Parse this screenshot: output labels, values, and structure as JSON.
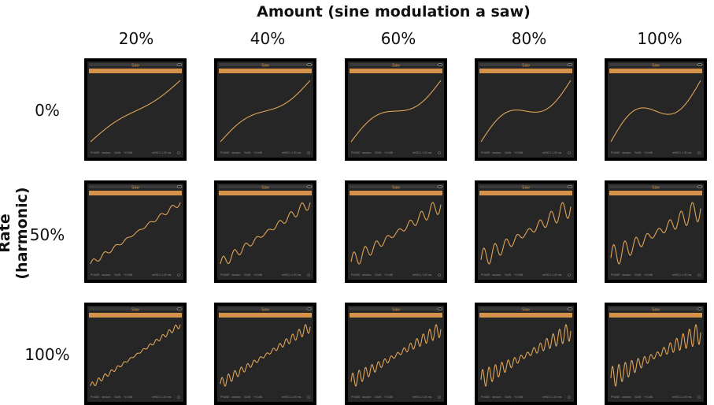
{
  "header": {
    "title": "Amount (sine modulation a saw)",
    "row_axis_title": "Rate (harmonic)"
  },
  "columns": [
    "20%",
    "40%",
    "60%",
    "80%",
    "100%"
  ],
  "rows": [
    "0%",
    "50%",
    "100%"
  ],
  "panel": {
    "title": "Saw",
    "footer": [
      "PHASE",
      "random",
      "GAIN",
      "+0.0dB",
      "ref/SCL 1.00 ms"
    ]
  },
  "colors": {
    "frame": "#000000",
    "display": "#262626",
    "accent": "#d4924a",
    "trace": "#e0a458",
    "footer_text": "#8a8a8a"
  },
  "grid": {
    "amounts": [
      0.2,
      0.4,
      0.6,
      0.8,
      1.0
    ],
    "rate_harmonics": [
      1,
      8,
      14
    ],
    "rate_labels_percent": [
      0,
      50,
      100
    ]
  }
}
